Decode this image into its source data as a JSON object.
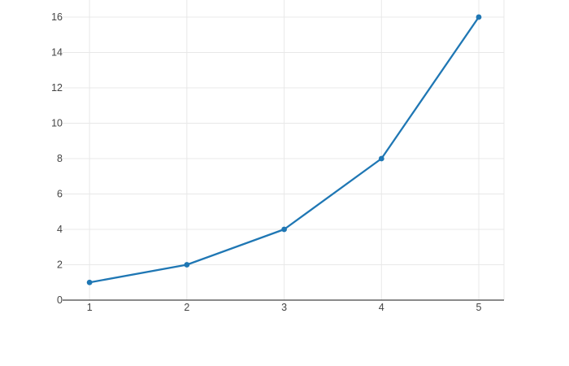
{
  "figure": {
    "background": "#ffffff"
  },
  "chart_data": {
    "type": "line",
    "title": "",
    "xlabel": "",
    "ylabel": "",
    "x": [
      1,
      2,
      3,
      4,
      5
    ],
    "y": [
      1,
      2,
      4,
      8,
      16
    ],
    "x_ticks": [
      "1",
      "2",
      "3",
      "4",
      "5"
    ],
    "y_ticks": [
      "0",
      "2",
      "4",
      "6",
      "8",
      "10",
      "12",
      "14",
      "16"
    ],
    "xlim": [
      0.748,
      5.259
    ],
    "ylim": [
      0,
      16.965
    ],
    "grid": true,
    "legend": false,
    "marker": "circle",
    "line_width": 2.3,
    "marker_radius": 3.4,
    "tick_font_size": 12.5,
    "colors": {
      "line": "#1f77b4",
      "marker": "#1f77b4",
      "grid": "#e8e8e8",
      "plot_border": "#e8e8e8",
      "axis_line": "#444444",
      "tick_label": "#444444",
      "background": "#ffffff"
    }
  }
}
